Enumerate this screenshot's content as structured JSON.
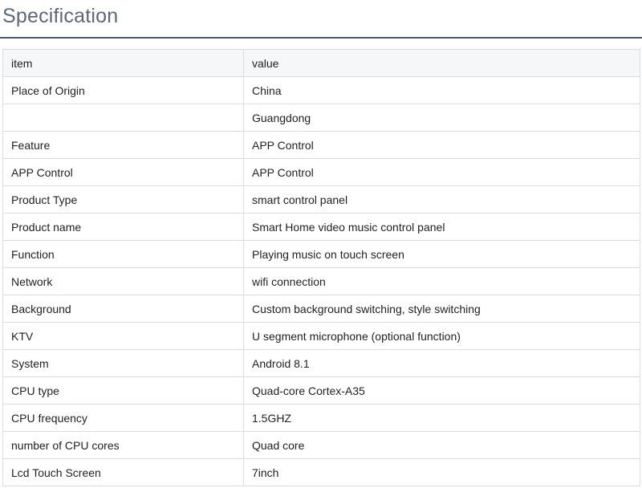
{
  "title": "Specification",
  "table": {
    "headers": [
      "item",
      "value"
    ],
    "rows": [
      [
        "Place of Origin",
        "China"
      ],
      [
        "",
        "Guangdong"
      ],
      [
        "Feature",
        "APP Control"
      ],
      [
        "APP Control",
        "APP Control"
      ],
      [
        "Product Type",
        "smart control panel"
      ],
      [
        "Product name",
        "Smart Home video music control panel"
      ],
      [
        "Function",
        "Playing music on touch screen"
      ],
      [
        "Network",
        "wifi connection"
      ],
      [
        "Background",
        "Custom background switching, style switching"
      ],
      [
        "KTV",
        "U segment microphone (optional function)"
      ],
      [
        "System",
        "Android 8.1"
      ],
      [
        "CPU type",
        "Quad-core Cortex-A35"
      ],
      [
        "CPU frequency",
        "1.5GHZ"
      ],
      [
        "number of CPU cores",
        "Quad core"
      ],
      [
        "Lcd Touch Screen",
        "7inch"
      ]
    ]
  }
}
